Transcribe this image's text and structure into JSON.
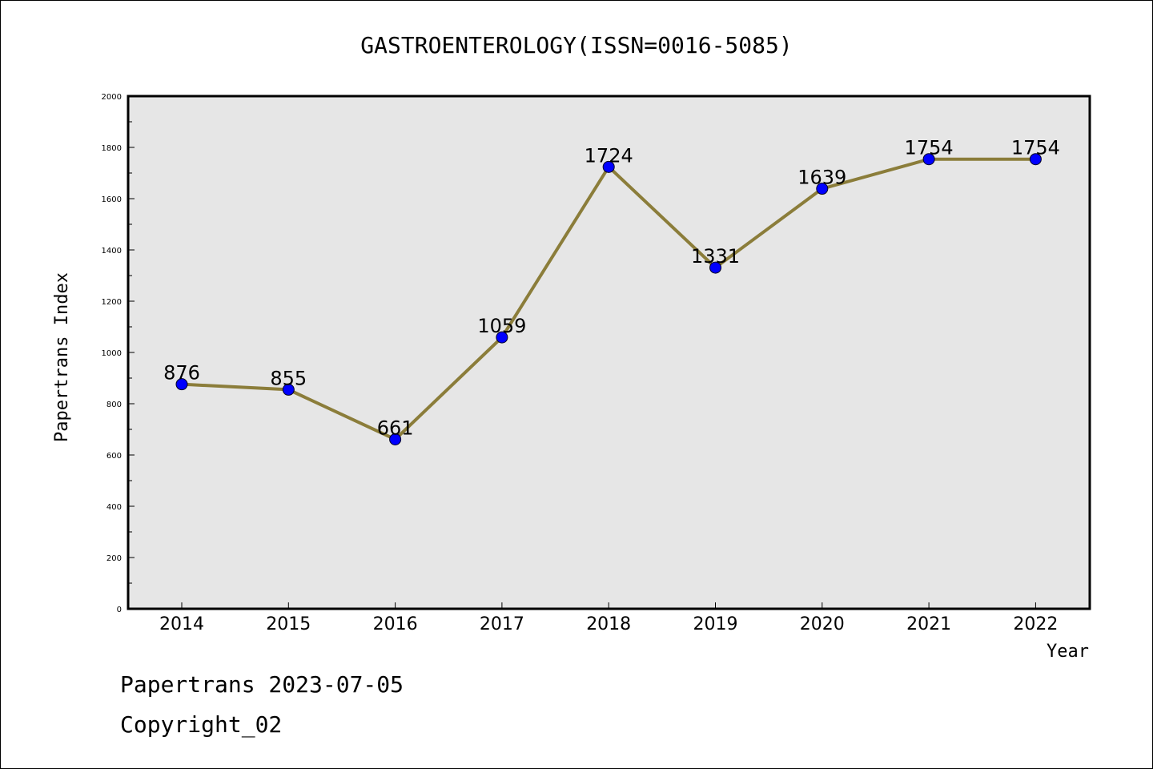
{
  "chart_data": {
    "type": "line",
    "title": "GASTROENTEROLOGY(ISSN=0016-5085)",
    "xlabel": "Year",
    "ylabel": "Papertrans Index",
    "x": [
      "2014",
      "2015",
      "2016",
      "2017",
      "2018",
      "2019",
      "2020",
      "2021",
      "2022"
    ],
    "series": [
      {
        "values": [
          876,
          855,
          661,
          1059,
          1724,
          1331,
          1639,
          1754,
          1754
        ]
      }
    ],
    "data_labels": [
      "876",
      "855",
      "661",
      "1059",
      "1724",
      "1331",
      "1639",
      "1754",
      "1754"
    ],
    "ylim": [
      0,
      2000
    ],
    "yticks": [
      0,
      200,
      400,
      600,
      800,
      1000,
      1200,
      1400,
      1600,
      1800,
      2000
    ],
    "grid": false,
    "colors": {
      "line": "#8b7d3a",
      "marker": "#0000ff",
      "plot_bg": "#e6e6e6"
    }
  },
  "footer": {
    "line1": "Papertrans 2023-07-05",
    "line2": "Copyright_02"
  }
}
